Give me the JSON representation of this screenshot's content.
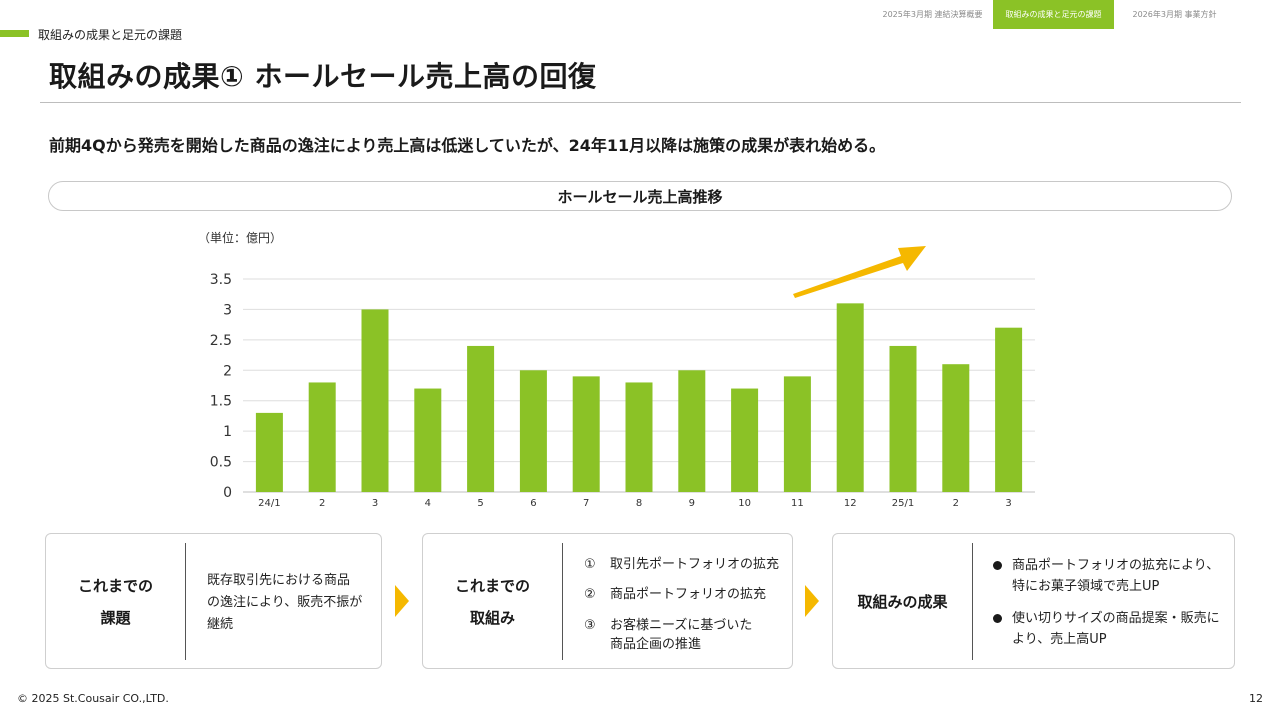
{
  "nav": {
    "tabs": [
      {
        "label": "2025年3月期 連結決算概要",
        "active": false
      },
      {
        "label": "取組みの成果と足元の課題",
        "active": true
      },
      {
        "label": "2026年3月期 事業方針",
        "active": false
      }
    ]
  },
  "section": {
    "label": "取組みの成果と足元の課題"
  },
  "page": {
    "title": "取組みの成果① ホールセール売上高の回復",
    "lead": "前期4Qから発売を開始した商品の逸注により売上高は低迷していたが、24年11月以降は施策の成果が表れ始める。"
  },
  "chart_data": {
    "type": "bar",
    "title": "ホールセール売上高推移",
    "unit_label": "（単位：億円）",
    "categories": [
      "24/1",
      "2",
      "3",
      "4",
      "5",
      "6",
      "7",
      "8",
      "9",
      "10",
      "11",
      "12",
      "25/1",
      "2",
      "3"
    ],
    "values": [
      1.3,
      1.8,
      3.0,
      1.7,
      2.4,
      2.0,
      1.9,
      1.8,
      2.0,
      1.7,
      1.9,
      3.1,
      2.4,
      2.1,
      2.7
    ],
    "ylim": [
      0,
      3.5
    ],
    "yticks": [
      0,
      0.5,
      1,
      1.5,
      2,
      2.5,
      3,
      3.5
    ],
    "ytick_labels": [
      "0",
      "0.5",
      "1",
      "1.5",
      "2",
      "2.5",
      "3",
      "3.5"
    ],
    "grid": true,
    "bar_color": "#8bc226",
    "arrow_color": "#f5b800",
    "annotation": "upward-trend-arrow"
  },
  "boxes": {
    "issues": {
      "heading_line1": "これまでの",
      "heading_line2": "課題",
      "text_line1": "既存取引先における商品",
      "text_line2": "の逸注により、販売不振が",
      "text_line3": "継続"
    },
    "efforts": {
      "heading_line1": "これまでの",
      "heading_line2": "取組み",
      "items": [
        {
          "num": "①",
          "line1": "取引先ポートフォリオの拡充",
          "line2": ""
        },
        {
          "num": "②",
          "line1": "商品ポートフォリオの拡充",
          "line2": ""
        },
        {
          "num": "③",
          "line1": "お客様ニーズに基づいた",
          "line2": "商品企画の推進"
        }
      ]
    },
    "results": {
      "heading": "取組みの成果",
      "bullets": [
        {
          "line1": "商品ポートフォリオの拡充により、",
          "line2": "特にお菓子領域で売上UP"
        },
        {
          "line1": "使い切りサイズの商品提案・販売に",
          "line2": "より、売上高UP"
        }
      ]
    }
  },
  "footer": {
    "copyright": "© 2025 St.Cousair CO.,LTD.",
    "page_number": "12"
  },
  "colors": {
    "accent": "#8bc226",
    "chevron": "#f5b800"
  }
}
